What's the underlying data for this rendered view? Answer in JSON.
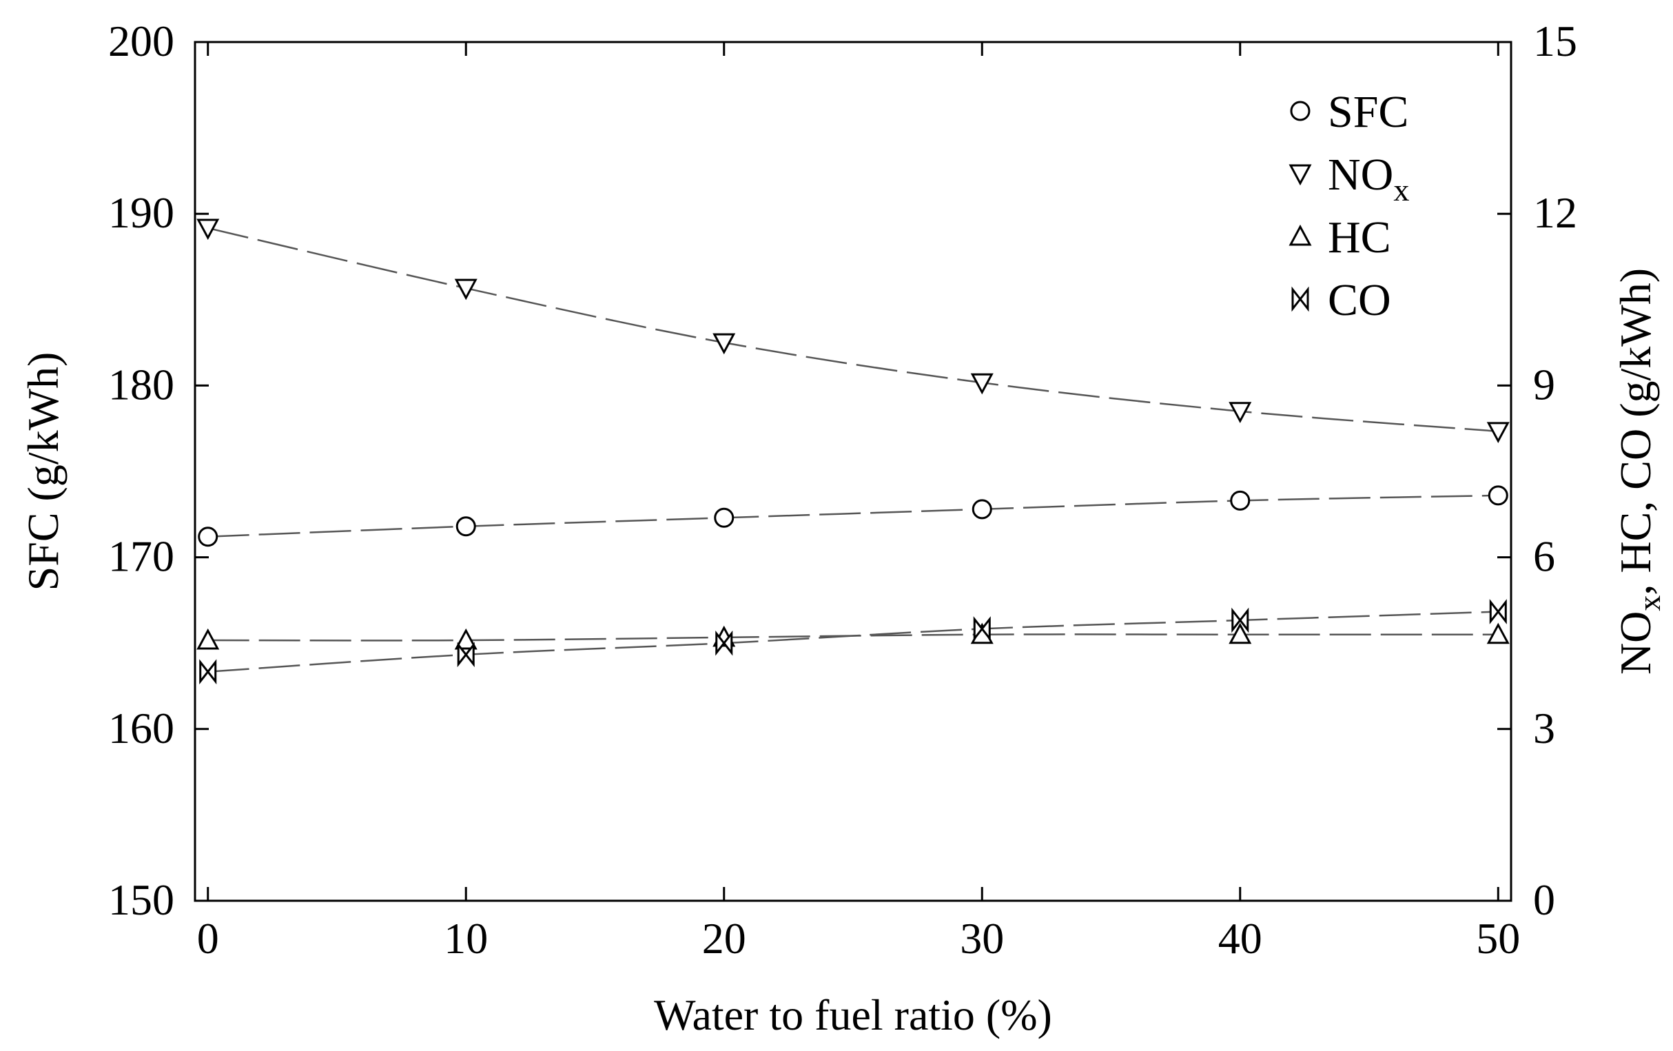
{
  "chart_data": {
    "type": "scatter",
    "title": "",
    "xlabel": "Water to fuel ratio (%)",
    "ylabel_left": "SFC (g/kWh)",
    "ylabel_right": {
      "main": "NO",
      "sub": "x",
      "rest": ", HC, CO (g/kWh)"
    },
    "xlim": [
      -0.5,
      50.5
    ],
    "ylim_left": [
      150,
      200
    ],
    "ylim_right": [
      0,
      15
    ],
    "x_ticks": [
      0,
      10,
      20,
      30,
      40,
      50
    ],
    "x_tick_labels": [
      "0",
      "10",
      "20",
      "30",
      "40",
      "50"
    ],
    "left_ticks": [
      150,
      160,
      170,
      180,
      190,
      200
    ],
    "left_tick_labels": [
      "150",
      "160",
      "170",
      "180",
      "190",
      "200"
    ],
    "right_ticks": [
      0,
      3,
      6,
      9,
      12,
      15
    ],
    "right_tick_labels": [
      "0",
      "3",
      "6",
      "9",
      "12",
      "15"
    ],
    "grid": false,
    "legend_position": "top-right",
    "series": [
      {
        "name": "SFC",
        "label_main": "SFC",
        "label_sub": "",
        "axis": "left",
        "marker": "circle",
        "x": [
          0,
          10,
          20,
          30,
          40,
          50
        ],
        "values": [
          171.2,
          171.8,
          172.3,
          172.8,
          173.3,
          173.6
        ]
      },
      {
        "name": "NOx",
        "label_main": "NO",
        "label_sub": "x",
        "axis": "right",
        "marker": "triangle-down",
        "x": [
          0,
          10,
          20,
          30,
          40,
          50
        ],
        "values": [
          11.75,
          10.7,
          9.75,
          9.05,
          8.55,
          8.2
        ]
      },
      {
        "name": "HC",
        "label_main": "HC",
        "label_sub": "",
        "axis": "right",
        "marker": "triangle-up",
        "x": [
          0,
          10,
          20,
          30,
          40,
          50
        ],
        "values": [
          4.55,
          4.55,
          4.6,
          4.65,
          4.65,
          4.65
        ]
      },
      {
        "name": "CO",
        "label_main": "CO",
        "label_sub": "",
        "axis": "right",
        "marker": "bowtie",
        "x": [
          0,
          10,
          20,
          30,
          40,
          50
        ],
        "values": [
          4.0,
          4.3,
          4.5,
          4.75,
          4.9,
          5.05
        ]
      }
    ]
  }
}
